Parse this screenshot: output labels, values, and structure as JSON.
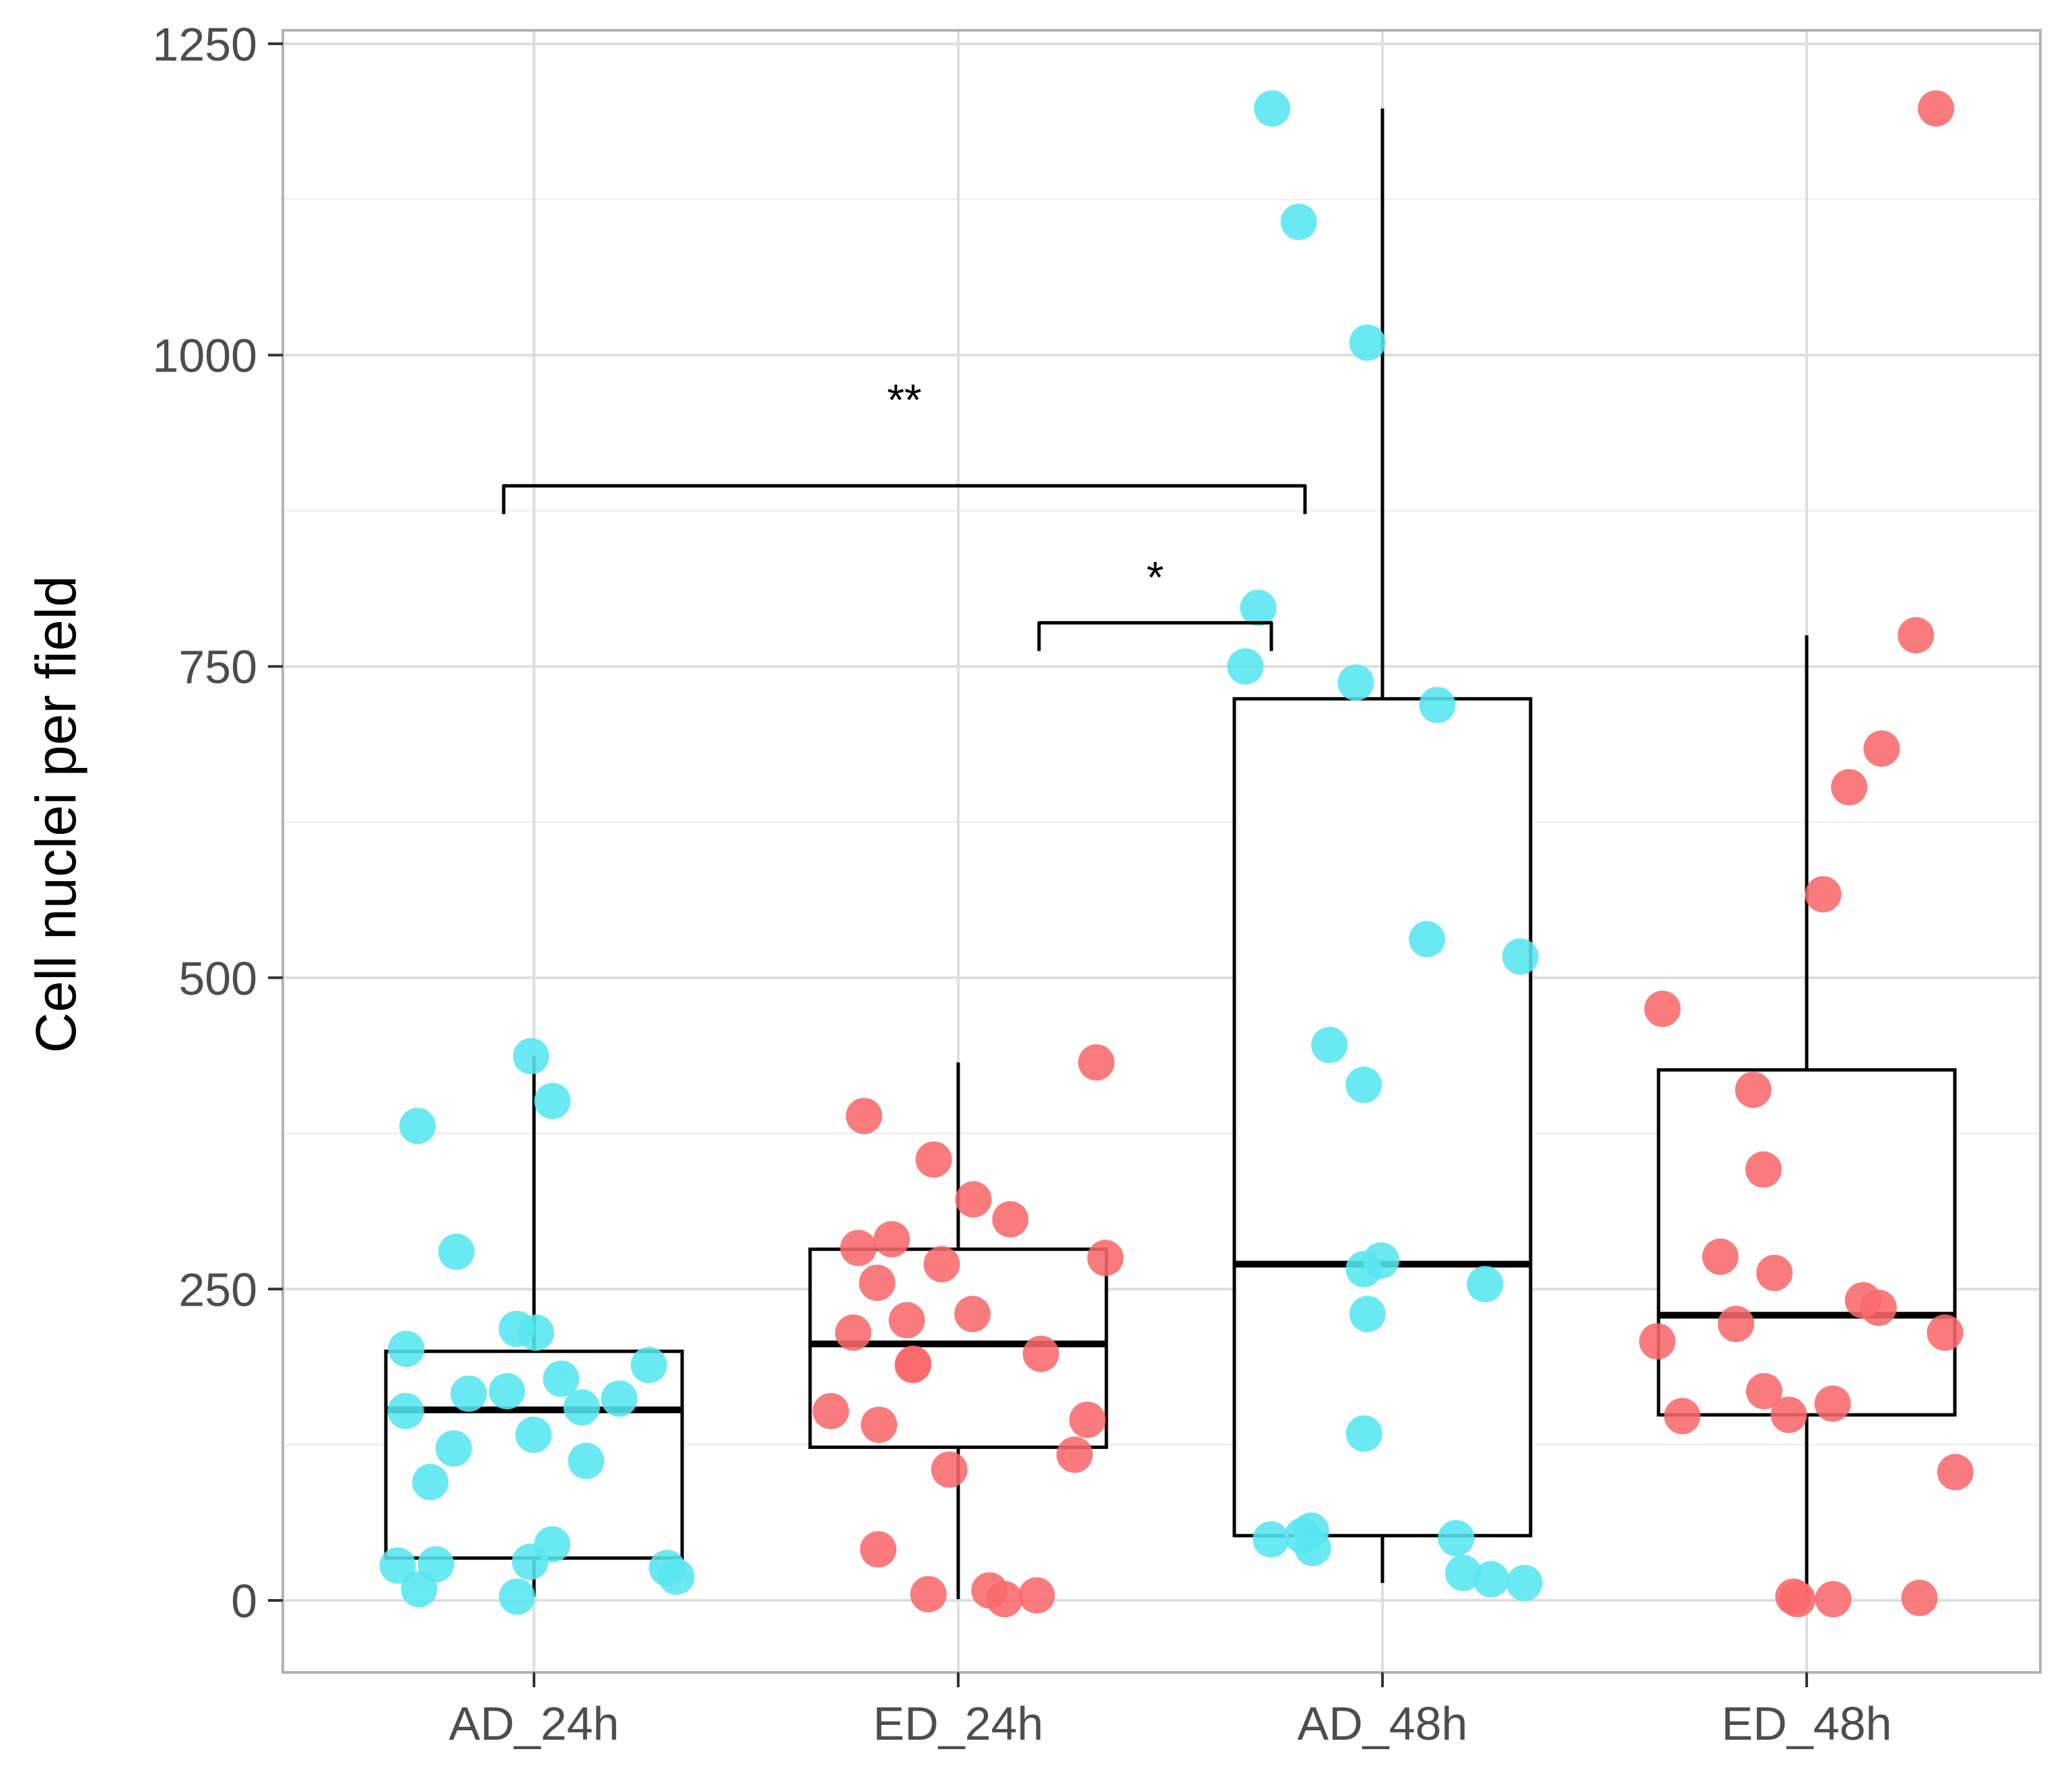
{
  "chart_data": {
    "type": "box",
    "xlabel": "",
    "ylabel": "Cell nuclei per field",
    "ylim": [
      -60,
      1250
    ],
    "y_ticks": [
      "0",
      "250",
      "500",
      "750",
      "1000",
      "1250"
    ],
    "y_tick_values": [
      0,
      250,
      500,
      750,
      1000,
      1250
    ],
    "grid": true,
    "categories": [
      "AD_24h",
      "ED_24h",
      "AD_48h",
      "ED_48h"
    ],
    "groups": [
      {
        "name": "AD_24h",
        "color": "#56E6F0",
        "box": {
          "whisker_low": 3,
          "q1": 34,
          "median": 153,
          "q3": 200,
          "whisker_high": 437
        },
        "points": [
          437,
          401,
          381,
          280,
          218,
          215,
          202,
          189,
          178,
          168,
          166,
          162,
          155,
          152,
          133,
          122,
          112,
          95,
          45,
          31,
          29,
          28,
          26,
          19,
          9,
          3
        ]
      },
      {
        "name": "ED_24h",
        "color": "#F8696B",
        "box": {
          "whisker_low": 1,
          "q1": 123,
          "median": 206,
          "q3": 282,
          "whisker_high": 432
        },
        "points": [
          432,
          389,
          354,
          322,
          306,
          290,
          283,
          275,
          270,
          255,
          230,
          225,
          215,
          198,
          190,
          189,
          152,
          145,
          141,
          117,
          105,
          41,
          8,
          5,
          4,
          1
        ]
      },
      {
        "name": "AD_48h",
        "color": "#56E6F0",
        "box": {
          "whisker_low": 14,
          "q1": 52,
          "median": 270,
          "q3": 724,
          "whisker_high": 1198
        },
        "points": [
          1198,
          1107,
          1010,
          797,
          750,
          737,
          719,
          531,
          517,
          446,
          414,
          273,
          266,
          254,
          230,
          134,
          56,
          52,
          50,
          49,
          42,
          22,
          17,
          14
        ]
      },
      {
        "name": "ED_48h",
        "color": "#F8696B",
        "box": {
          "whisker_low": 1,
          "q1": 149,
          "median": 229,
          "q3": 426,
          "whisker_high": 775
        },
        "points": [
          1198,
          775,
          684,
          653,
          567,
          475,
          410,
          346,
          276,
          263,
          241,
          235,
          222,
          215,
          208,
          168,
          158,
          149,
          148,
          103,
          3,
          2,
          1,
          1
        ]
      }
    ],
    "annotations": [
      {
        "label": "**",
        "from": "AD_24h",
        "to": "AD_48h",
        "y": 895
      },
      {
        "label": "*",
        "from": "ED_24h",
        "to": "AD_48h",
        "y": 785
      }
    ]
  }
}
